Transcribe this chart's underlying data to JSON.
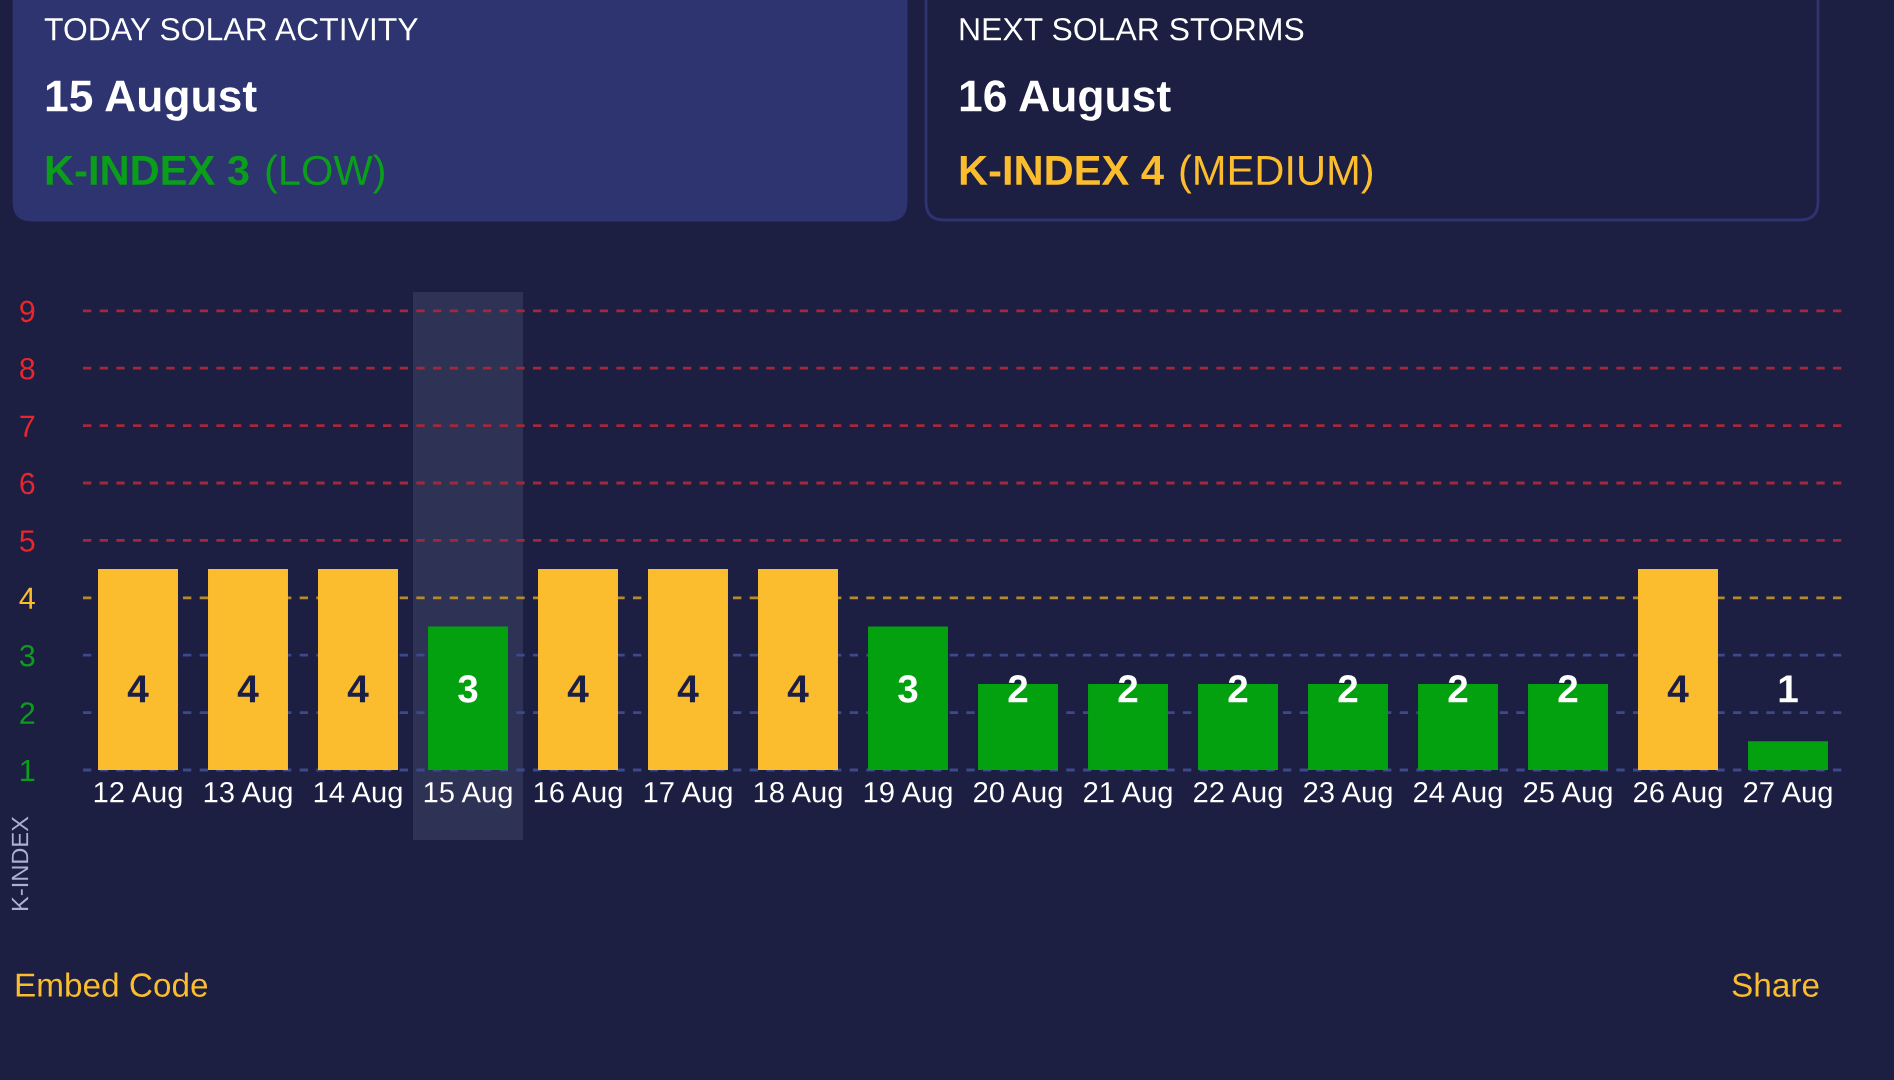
{
  "chart_data": {
    "type": "bar",
    "ylabel": "K-INDEX",
    "categories": [
      "12 Aug",
      "13 Aug",
      "14 Aug",
      "15 Aug",
      "16 Aug",
      "17 Aug",
      "18 Aug",
      "19 Aug",
      "20 Aug",
      "21 Aug",
      "22 Aug",
      "23 Aug",
      "24 Aug",
      "25 Aug",
      "26 Aug",
      "27 Aug"
    ],
    "values": [
      4,
      4,
      4,
      3,
      4,
      4,
      4,
      3,
      2,
      2,
      2,
      2,
      2,
      2,
      4,
      1
    ],
    "colors": [
      "#fbbd2e",
      "#fbbd2e",
      "#fbbd2e",
      "#03a010",
      "#fbbd2e",
      "#fbbd2e",
      "#fbbd2e",
      "#03a010",
      "#03a010",
      "#03a010",
      "#03a010",
      "#03a010",
      "#03a010",
      "#03a010",
      "#fbbd2e",
      "#03a010"
    ],
    "data_labels": true,
    "ylim": [
      0.5,
      8.5
    ],
    "yticks": [
      {
        "value": 0.5,
        "label": "1"
      },
      {
        "value": 1.5,
        "label": "2"
      },
      {
        "value": 2.5,
        "label": "3"
      },
      {
        "value": 3.5,
        "label": "4"
      },
      {
        "value": 4.5,
        "label": "5"
      },
      {
        "value": 5.5,
        "label": "6"
      },
      {
        "value": 6.5,
        "label": "7"
      },
      {
        "value": 7.5,
        "label": "8"
      },
      {
        "value": 8.5,
        "label": "9"
      }
    ],
    "grid": "y",
    "line_style": "dashed",
    "ref_lines": [
      {
        "axis": "y",
        "value": 3.5,
        "color": "#b38a2e",
        "line_style": "dashed"
      }
    ],
    "bands": [
      {
        "axis": "x",
        "from": "15 Aug",
        "to": "15 Aug",
        "color": "#2e3255"
      }
    ],
    "annotations": [
      "TODAY SOLAR ACTIVITY",
      "15 August",
      "K-INDEX 3",
      "(LOW)",
      "NEXT SOLAR STORMS",
      "16 August",
      "K-INDEX 4",
      "(MEDIUM)",
      "Embed Code",
      "Share"
    ]
  }
}
